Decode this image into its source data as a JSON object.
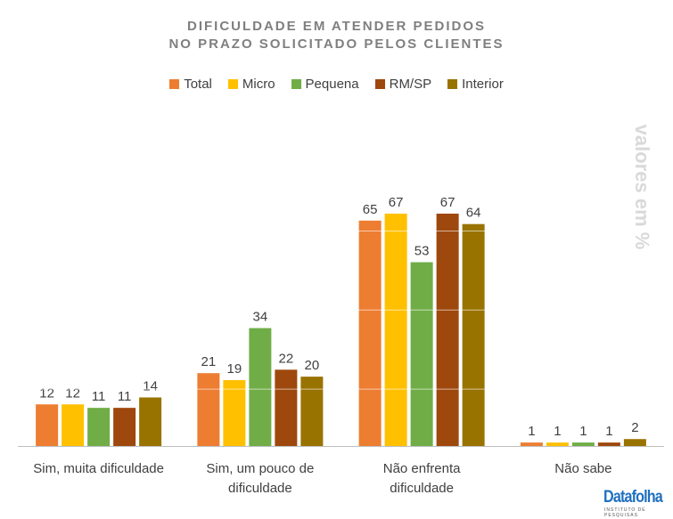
{
  "chart_data": {
    "type": "bar",
    "title": [
      "DIFICULDADE EM ATENDER PEDIDOS",
      "NO PRAZO SOLICITADO PELOS CLIENTES"
    ],
    "categories": [
      [
        "Sim, muita dificuldade"
      ],
      [
        "Sim, um pouco de",
        "dificuldade"
      ],
      [
        "Não enfrenta",
        "dificuldade"
      ],
      [
        "Não sabe"
      ]
    ],
    "series": [
      {
        "name": "Total",
        "color": "#ed7d31",
        "values": [
          12,
          21,
          65,
          1
        ]
      },
      {
        "name": "Micro",
        "color": "#ffc000",
        "values": [
          12,
          19,
          67,
          1
        ]
      },
      {
        "name": "Pequena",
        "color": "#70ad47",
        "values": [
          11,
          34,
          53,
          1
        ]
      },
      {
        "name": "RM/SP",
        "color": "#9e480e",
        "values": [
          11,
          22,
          67,
          1
        ]
      },
      {
        "name": "Interior",
        "color": "#997300",
        "values": [
          14,
          20,
          64,
          2
        ]
      }
    ],
    "ylabel": "valores em %",
    "ylim": [
      0,
      67
    ],
    "gridlines": [
      16.4,
      39.2,
      62
    ],
    "legend_position": "top",
    "data_labels": true
  },
  "branding": {
    "logo": "Datafolha",
    "logo_sub": "INSTITUTO DE PESQUISAS"
  }
}
